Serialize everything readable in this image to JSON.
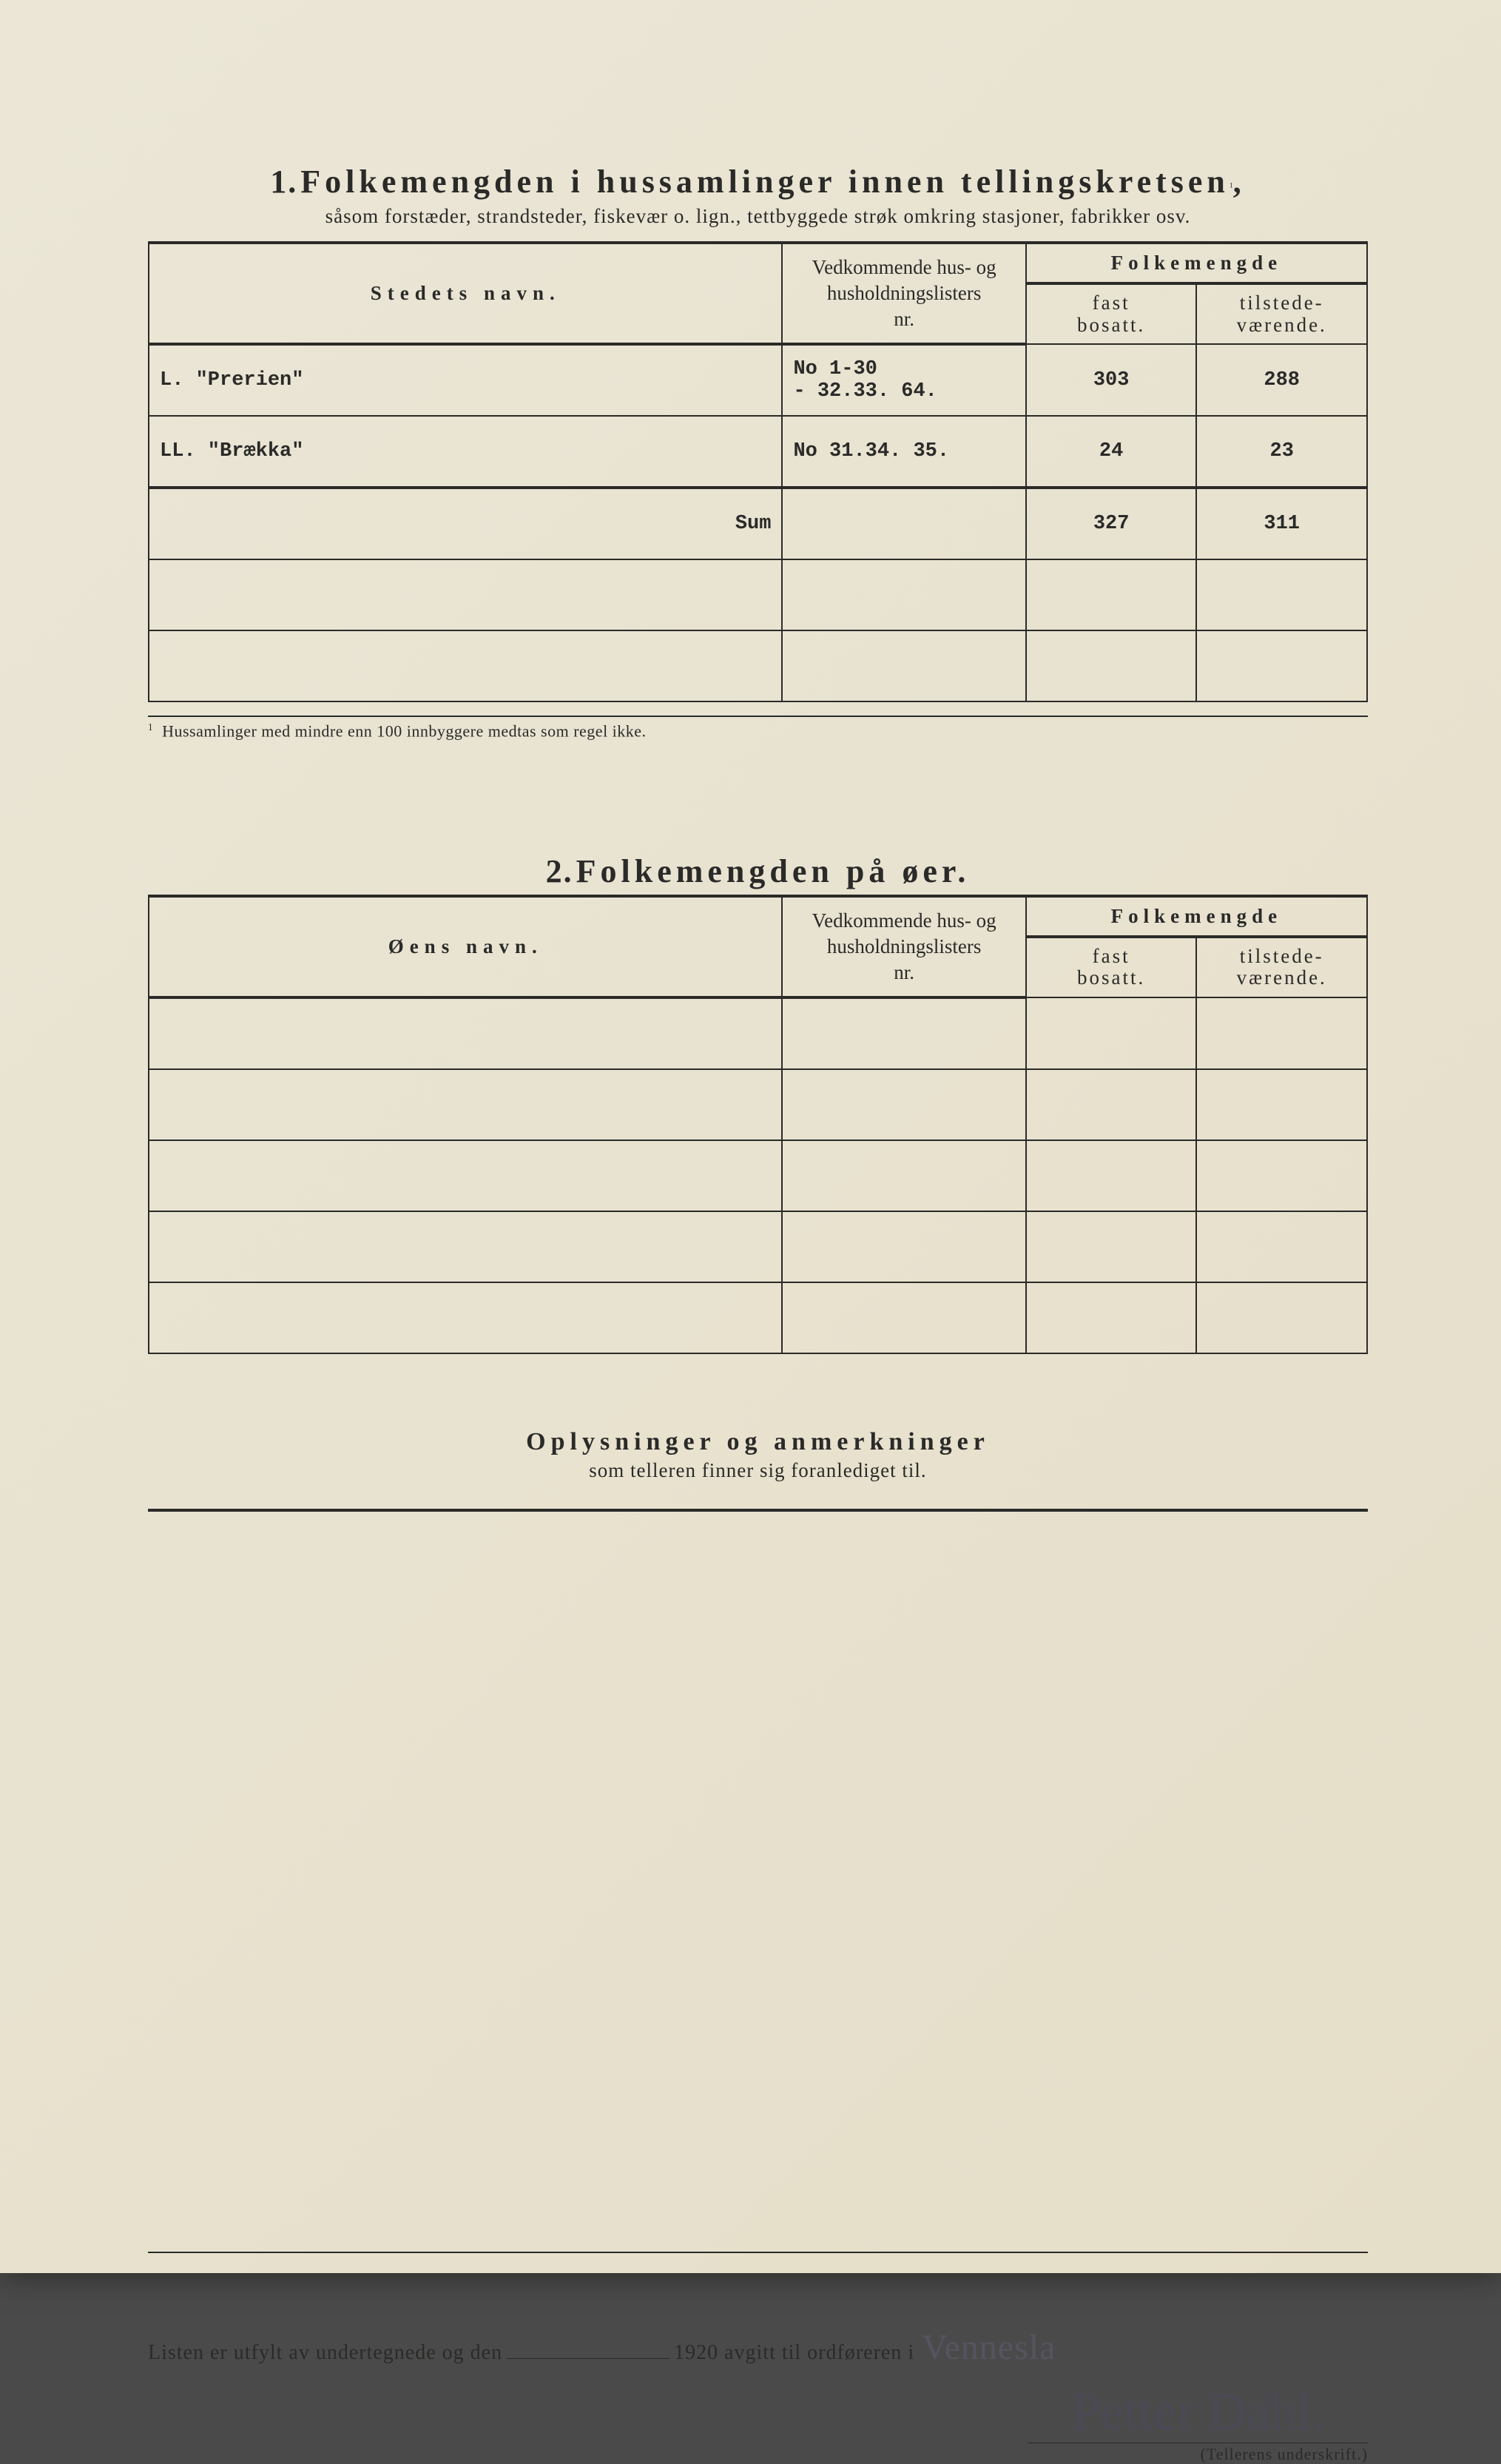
{
  "section1": {
    "num": "1.",
    "title": "Folkemengden i hussamlinger innen tellingskretsen",
    "title_sup": "1",
    "subtitle": "såsom forstæder, strandsteder, fiskevær o. lign., tettbyggede strøk omkring stasjoner, fabrikker osv.",
    "headers": {
      "name": "Stedets navn.",
      "nr_line1": "Vedkommende hus- og",
      "nr_line2": "husholdningslisters",
      "nr_line3": "nr.",
      "folk": "Folkemengde",
      "fast_line1": "fast",
      "fast_line2": "bosatt.",
      "til_line1": "tilstede-",
      "til_line2": "værende."
    },
    "rows": [
      {
        "name": "L. \"Prerien\"",
        "nr": "No 1-30\n- 32.33. 64.",
        "fast": "303",
        "til": "288"
      },
      {
        "name": "LL. \"Brækka\"",
        "nr": "No 31.34. 35.",
        "fast": "24",
        "til": "23"
      }
    ],
    "sum_label": "Sum",
    "sum_fast": "327",
    "sum_til": "311",
    "empty_rows": 2,
    "footnote_sup": "1",
    "footnote": "Hussamlinger med mindre enn 100 innbyggere medtas som regel ikke."
  },
  "section2": {
    "num": "2.",
    "title": "Folkemengden på øer.",
    "headers": {
      "name": "Øens navn.",
      "nr_line1": "Vedkommende hus- og",
      "nr_line2": "husholdningslisters",
      "nr_line3": "nr.",
      "folk": "Folkemengde",
      "fast_line1": "fast",
      "fast_line2": "bosatt.",
      "til_line1": "tilstede-",
      "til_line2": "værende."
    },
    "empty_rows": 5
  },
  "section3": {
    "title": "Oplysninger og anmerkninger",
    "subtitle": "som telleren finner sig foranlediget til."
  },
  "bottom": {
    "text1": "Listen er utfylt av undertegnede og den",
    "text2": "1920  avgitt til ordføreren i",
    "handwritten_place": "Vennesla",
    "signature": "Petter Dahl.",
    "sig_label": "(Tellerens underskrift.)"
  }
}
